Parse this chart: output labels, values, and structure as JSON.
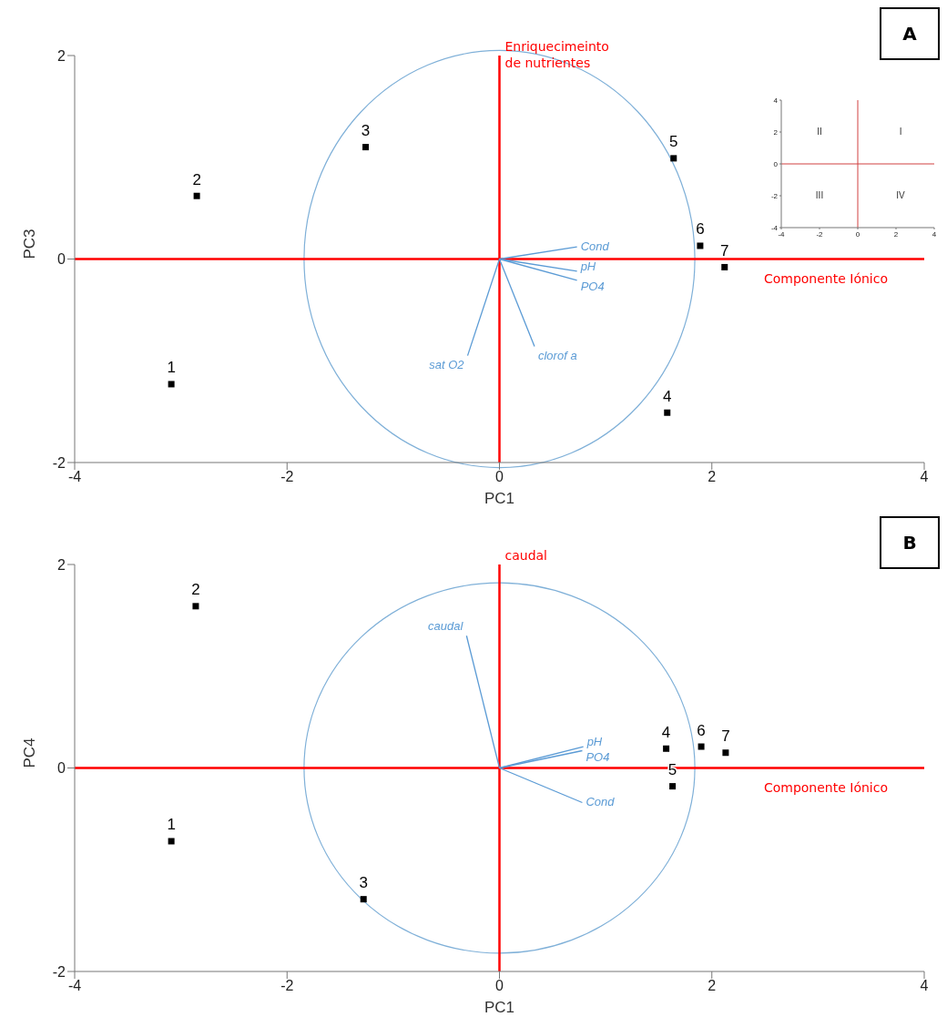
{
  "chart_data": [
    {
      "type": "scatter",
      "xlabel": "PC1",
      "ylabel": "PC3",
      "xlim": [
        -4,
        4
      ],
      "ylim": [
        -2,
        2
      ],
      "xticks": [
        -4,
        -2,
        0,
        2,
        4
      ],
      "yticks": [
        -2,
        0,
        2
      ],
      "grid": false,
      "legend": false,
      "annotations": [
        "A"
      ],
      "ref_lines": [
        {
          "axis": "x",
          "value": 0,
          "label": "Enriquecimeinto de nutrientes",
          "color": "#ff0000"
        },
        {
          "axis": "y",
          "value": 0,
          "label": "Componente Iónico",
          "color": "#ff0000"
        }
      ],
      "series": [
        {
          "name": "1",
          "color": "#000000",
          "marker": "square",
          "x": [
            -3.09
          ],
          "values": [
            -1.23
          ]
        },
        {
          "name": "2",
          "color": "#000000",
          "marker": "square",
          "x": [
            -2.85
          ],
          "values": [
            0.62
          ]
        },
        {
          "name": "3",
          "color": "#000000",
          "marker": "square",
          "x": [
            -1.26
          ],
          "values": [
            1.1
          ]
        },
        {
          "name": "4",
          "color": "#000000",
          "marker": "square",
          "x": [
            1.58
          ],
          "values": [
            -1.51
          ]
        },
        {
          "name": "5",
          "color": "#000000",
          "marker": "square",
          "x": [
            1.64
          ],
          "values": [
            0.99
          ]
        },
        {
          "name": "6",
          "color": "#000000",
          "marker": "square",
          "x": [
            1.89
          ],
          "values": [
            0.13
          ]
        },
        {
          "name": "7",
          "color": "#000000",
          "marker": "square",
          "x": [
            2.12
          ],
          "values": [
            -0.08
          ]
        },
        {
          "type": "line",
          "name": "Cond",
          "color": "#5b9bd5",
          "x": [
            0,
            0.73
          ],
          "values": [
            0,
            0.12
          ]
        },
        {
          "type": "line",
          "name": "pH",
          "color": "#5b9bd5",
          "x": [
            0,
            0.73
          ],
          "values": [
            0,
            -0.12
          ]
        },
        {
          "type": "line",
          "name": "PO4",
          "color": "#5b9bd5",
          "x": [
            0,
            0.73
          ],
          "values": [
            0,
            -0.21
          ]
        },
        {
          "type": "line",
          "name": "clorof a",
          "color": "#5b9bd5",
          "x": [
            0,
            0.33
          ],
          "values": [
            0,
            -0.86
          ]
        },
        {
          "type": "line",
          "name": "sat O2",
          "color": "#5b9bd5",
          "x": [
            0,
            -0.3
          ],
          "values": [
            0,
            -0.95
          ]
        }
      ]
    },
    {
      "type": "scatter",
      "xlim": [
        -4,
        4
      ],
      "ylim": [
        -4,
        4
      ],
      "xticks": [
        -4,
        -2,
        0,
        2,
        4
      ],
      "yticks": [
        -4,
        -2,
        0,
        2,
        4
      ],
      "ref_lines": [
        {
          "axis": "x",
          "value": 0,
          "color": "#d04040"
        },
        {
          "axis": "y",
          "value": 0,
          "color": "#d04040"
        }
      ],
      "annotations": [
        "II",
        "I",
        "III",
        "IV"
      ]
    },
    {
      "type": "scatter",
      "xlabel": "PC1",
      "ylabel": "PC4",
      "xlim": [
        -4,
        4
      ],
      "ylim": [
        -2,
        2
      ],
      "xticks": [
        -4,
        -2,
        0,
        2,
        4
      ],
      "yticks": [
        -2,
        0,
        2
      ],
      "grid": false,
      "legend": false,
      "annotations": [
        "B"
      ],
      "ref_lines": [
        {
          "axis": "x",
          "value": 0,
          "label": "caudal",
          "color": "#ff0000"
        },
        {
          "axis": "y",
          "value": 0,
          "label": "Componente Iónico",
          "color": "#ff0000"
        }
      ],
      "series": [
        {
          "name": "1",
          "color": "#000000",
          "marker": "square",
          "x": [
            -3.09
          ],
          "values": [
            -0.72
          ]
        },
        {
          "name": "2",
          "color": "#000000",
          "marker": "square",
          "x": [
            -2.86
          ],
          "values": [
            1.59
          ]
        },
        {
          "name": "3",
          "color": "#000000",
          "marker": "square",
          "x": [
            -1.28
          ],
          "values": [
            -1.29
          ]
        },
        {
          "name": "4",
          "color": "#000000",
          "marker": "square",
          "x": [
            1.57
          ],
          "values": [
            0.19
          ]
        },
        {
          "name": "5",
          "color": "#000000",
          "marker": "square",
          "x": [
            1.63
          ],
          "values": [
            -0.18
          ]
        },
        {
          "name": "6",
          "color": "#000000",
          "marker": "square",
          "x": [
            1.9
          ],
          "values": [
            0.21
          ]
        },
        {
          "name": "7",
          "color": "#000000",
          "marker": "square",
          "x": [
            2.13
          ],
          "values": [
            0.15
          ]
        },
        {
          "type": "line",
          "name": "caudal",
          "color": "#5b9bd5",
          "x": [
            0,
            -0.31
          ],
          "values": [
            0,
            1.3
          ]
        },
        {
          "type": "line",
          "name": "pH",
          "color": "#5b9bd5",
          "x": [
            0,
            0.79
          ],
          "values": [
            0,
            0.21
          ]
        },
        {
          "type": "line",
          "name": "PO4",
          "color": "#5b9bd5",
          "x": [
            0,
            0.78
          ],
          "values": [
            0,
            0.17
          ]
        },
        {
          "type": "line",
          "name": "Cond",
          "color": "#5b9bd5",
          "x": [
            0,
            0.78
          ],
          "values": [
            0,
            -0.34
          ]
        }
      ]
    }
  ]
}
